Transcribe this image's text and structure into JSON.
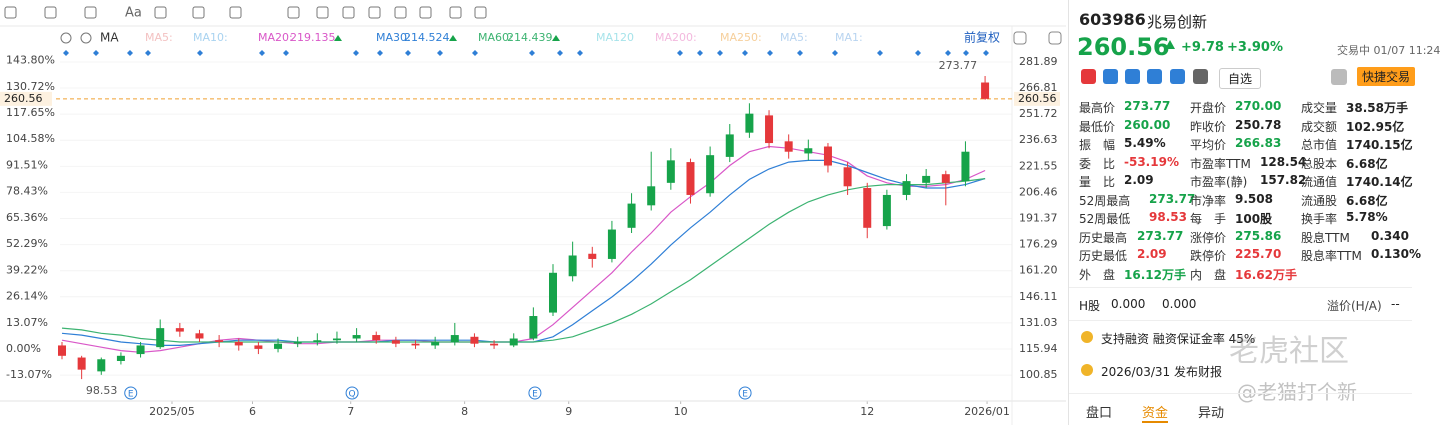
{
  "chart_data": {
    "type": "candlestick",
    "toolbar_text": "Aa",
    "indicator": "MA",
    "adjust": "前复权",
    "open": [
      118,
      111,
      103,
      109,
      113,
      117,
      128,
      125,
      121,
      120,
      118,
      116,
      119,
      120,
      121,
      122,
      124,
      121,
      119,
      118,
      120,
      123,
      119,
      118,
      122,
      137,
      158,
      171,
      168,
      186,
      199,
      212,
      224,
      206,
      227,
      241,
      251,
      236,
      229,
      233,
      221,
      209,
      187,
      205,
      212,
      217,
      213,
      270
    ],
    "high": [
      120,
      112,
      111,
      114,
      120,
      133,
      131,
      127,
      124,
      122,
      120,
      122,
      123,
      125,
      126,
      128,
      126,
      123,
      121,
      123,
      131,
      125,
      121,
      125,
      140,
      165,
      178,
      175,
      190,
      206,
      230,
      232,
      226,
      233,
      246,
      258,
      254,
      240,
      237,
      235,
      224,
      212,
      208,
      217,
      220,
      219,
      236,
      273.77
    ],
    "low": [
      110,
      98.53,
      101,
      107,
      111,
      116,
      123,
      120,
      117,
      115,
      113,
      114,
      117,
      118,
      119,
      120,
      119,
      117,
      116,
      116,
      118,
      117,
      116,
      117,
      121,
      135,
      155,
      163,
      166,
      183,
      196,
      208,
      200,
      204,
      224,
      238,
      232,
      226,
      225,
      218,
      205,
      180,
      185,
      202,
      209,
      199,
      210,
      260
    ],
    "close": [
      112,
      104,
      110,
      112,
      118,
      128,
      126,
      122,
      120,
      118,
      116,
      119,
      120,
      121,
      122,
      124,
      121,
      119,
      118,
      120,
      124,
      119,
      118,
      122,
      135,
      160,
      170,
      168,
      185,
      200,
      210,
      225,
      205,
      228,
      240,
      252,
      235,
      230,
      232,
      222,
      210,
      186,
      205,
      213,
      216,
      212,
      230,
      260.56
    ],
    "up_color": "#16a34a",
    "down_color": "#e5383b",
    "ma": [
      {
        "name": "MA20:",
        "color": "#d957c8",
        "values": [
          121,
          119,
          117,
          115,
          114,
          115,
          117,
          119,
          121,
          122,
          121,
          120,
          119,
          119,
          120,
          120,
          121,
          121,
          121,
          120,
          120,
          120,
          120,
          120,
          122,
          130,
          140,
          150,
          160,
          172,
          183,
          195,
          204,
          212,
          222,
          230,
          233,
          232,
          230,
          228,
          224,
          216,
          212,
          210,
          210,
          211,
          214,
          219.135
        ]
      },
      {
        "name": "MA30:",
        "color": "#2f7fd6",
        "values": [
          125,
          124,
          122,
          120,
          119,
          118,
          118,
          119,
          120,
          121,
          121,
          121,
          120,
          120,
          120,
          120,
          120,
          121,
          121,
          121,
          121,
          121,
          120,
          120,
          120,
          123,
          130,
          138,
          146,
          155,
          165,
          176,
          186,
          195,
          205,
          214,
          220,
          224,
          225,
          225,
          222,
          218,
          214,
          211,
          209,
          209,
          211,
          214.524
        ]
      },
      {
        "name": "MA60:",
        "color": "#3cb371",
        "values": [
          128,
          127,
          125,
          124,
          122,
          121,
          120,
          120,
          120,
          120,
          120,
          120,
          120,
          120,
          120,
          120,
          120,
          120,
          120,
          120,
          120,
          120,
          120,
          120,
          120,
          121,
          123,
          127,
          131,
          136,
          142,
          149,
          156,
          164,
          172,
          180,
          188,
          195,
          201,
          205,
          208,
          210,
          211,
          211,
          211,
          212,
          213,
          214.439
        ]
      }
    ],
    "inactive_indicators": [
      {
        "name": "MA5:",
        "color": "#f3c2c2"
      },
      {
        "name": "MA10:",
        "color": "#a9d3f0"
      },
      {
        "name": "MA120",
        "color": "#a6e3ea"
      },
      {
        "name": "MA200:",
        "color": "#f3b9de"
      },
      {
        "name": "MA250:",
        "color": "#f6cf9b"
      },
      {
        "name": "MA5:",
        "color": "#b8d4f0"
      },
      {
        "name": "MA1:",
        "color": "#b8d4f0"
      }
    ],
    "ylim": [
      86.45,
      288.8
    ],
    "yticks": [
      281.89,
      266.81,
      251.72,
      236.63,
      221.55,
      206.46,
      191.37,
      176.29,
      {
        "value": 161.2,
        "label": "161.20"
      },
      146.11,
      131.03,
      115.94,
      100.85
    ],
    "y2lim": [
      -25.44,
      149.08
    ],
    "y2ticks": [
      {
        "value": 143.8,
        "label": "143.80%"
      },
      {
        "value": 130.72,
        "label": "130.72%"
      },
      {
        "value": 117.65,
        "label": "117.65%"
      },
      {
        "value": 104.58,
        "label": "104.58%"
      },
      {
        "value": 91.51,
        "label": "91.51%"
      },
      {
        "value": 78.43,
        "label": "78.43%"
      },
      {
        "value": 65.36,
        "label": "65.36%"
      },
      {
        "value": 52.29,
        "label": "52.29%"
      },
      {
        "value": 39.22,
        "label": "39.22%"
      },
      {
        "value": 26.14,
        "label": "26.14%"
      },
      {
        "value": 13.07,
        "label": "13.07%"
      },
      {
        "value": 0,
        "label": "0.00%"
      },
      {
        "value": -13.07,
        "label": "-13.07%"
      }
    ],
    "xticks": [
      {
        "value": 5.6,
        "label": "2025/05"
      },
      {
        "value": 9.7,
        "label": "6"
      },
      {
        "value": 14.7,
        "label": "7"
      },
      {
        "value": 20.5,
        "label": "8"
      },
      {
        "value": 25.8,
        "label": "9"
      },
      {
        "value": 31.5,
        "label": "10"
      },
      {
        "value": 41,
        "label": "12"
      },
      {
        "value": 47.1,
        "label": "2026/01"
      }
    ],
    "events": [
      {
        "label": "E",
        "index": 3.5
      },
      {
        "label": "Q",
        "index": 14.77
      },
      {
        "label": "E",
        "index": 24.08
      },
      {
        "label": "E",
        "index": 34.78
      }
    ]
  },
  "panel": {
    "code": "603986",
    "name": "兆易创新",
    "price": "260.56",
    "change": "+9.78",
    "change_pct": "+3.90%",
    "status": "交易中 01/07 11:24",
    "watch": "自选",
    "quick_trade": "快捷交易",
    "stats": [
      [
        {
          "label": "最高价",
          "value": "273.77",
          "tone": "up"
        },
        {
          "label": "开盘价",
          "value": "270.00",
          "tone": "up"
        },
        {
          "label": "成交量",
          "value": "38.58万手",
          "tone": "plain"
        }
      ],
      [
        {
          "label": "最低价",
          "value": "260.00",
          "tone": "up"
        },
        {
          "label": "昨收价",
          "value": "250.78",
          "tone": "plain"
        },
        {
          "label": "成交额",
          "value": "102.95亿",
          "tone": "plain"
        }
      ],
      [
        {
          "label": "振　幅",
          "value": "5.49%",
          "tone": "plain"
        },
        {
          "label": "平均价",
          "value": "266.83",
          "tone": "up"
        },
        {
          "label": "总市值",
          "value": "1740.15亿",
          "tone": "plain"
        }
      ],
      [
        {
          "label": "委　比",
          "value": "-53.19%",
          "tone": "down"
        },
        {
          "label": "市盈率TTM",
          "value": "128.54",
          "tone": "plain"
        },
        {
          "label": "总股本",
          "value": "6.68亿",
          "tone": "plain"
        }
      ],
      [
        {
          "label": "量　比",
          "value": "2.09",
          "tone": "plain"
        },
        {
          "label": "市盈率(静)",
          "value": "157.82",
          "tone": "plain"
        },
        {
          "label": "流通值",
          "value": "1740.14亿",
          "tone": "plain"
        }
      ],
      [
        {
          "label": "52周最高",
          "value": "273.77",
          "tone": "up"
        },
        {
          "label": "市净率",
          "value": "9.508",
          "tone": "plain"
        },
        {
          "label": "流通股",
          "value": "6.68亿",
          "tone": "plain"
        }
      ],
      [
        {
          "label": "52周最低",
          "value": "98.53",
          "tone": "down"
        },
        {
          "label": "每　手",
          "value": "100股",
          "tone": "plain"
        },
        {
          "label": "换手率",
          "value": "5.78%",
          "tone": "plain"
        }
      ],
      [
        {
          "label": "历史最高",
          "value": "273.77",
          "tone": "up"
        },
        {
          "label": "涨停价",
          "value": "275.86",
          "tone": "up"
        },
        {
          "label": "股息TTM",
          "value": "0.340",
          "tone": "plain"
        }
      ],
      [
        {
          "label": "历史最低",
          "value": "2.09",
          "tone": "down"
        },
        {
          "label": "跌停价",
          "value": "225.70",
          "tone": "down"
        },
        {
          "label": "股息率TTM",
          "value": "0.130%",
          "tone": "plain"
        }
      ],
      [
        {
          "label": "外　盘",
          "value": "16.12万手",
          "tone": "up"
        },
        {
          "label": "内　盘",
          "value": "16.62万手",
          "tone": "down"
        }
      ]
    ],
    "h_share": {
      "label": "H股",
      "v1": "0.000",
      "v2": "0.000",
      "premium_label": "溢价(H/A)",
      "premium": "--"
    },
    "notices": [
      "支持融资 融资保证金率 45%",
      "2026/03/31 发布财报"
    ],
    "tabs": [
      "盘口",
      "资金",
      "异动"
    ],
    "active_tab": 1,
    "watermark": [
      "老虎社区",
      "@老猫打个新"
    ]
  }
}
